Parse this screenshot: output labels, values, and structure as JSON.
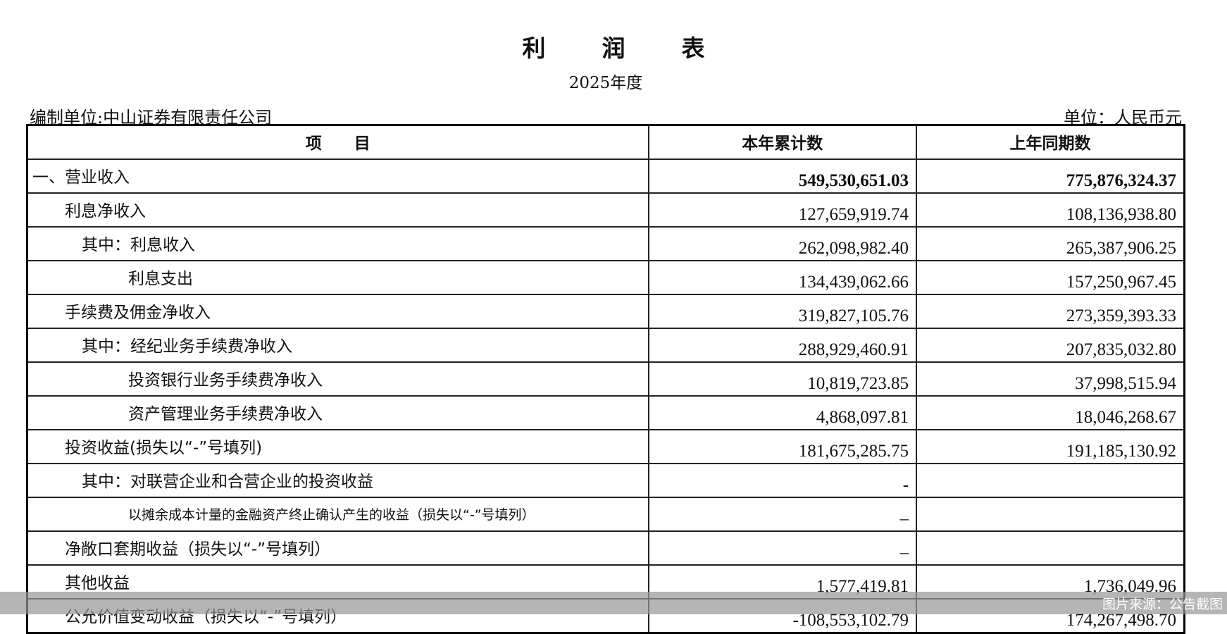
{
  "header": {
    "title": "利润表",
    "year": "2025年度",
    "company": "编制单位:中山证券有限责任公司",
    "unit": "单位：人民币元"
  },
  "columns": [
    "项　　目",
    "本年累计数",
    "上年同期数"
  ],
  "rows": [
    {
      "label": "一、营业收入",
      "indent": 0,
      "current": "549,530,651.03",
      "previous": "775,876,324.37",
      "bold": true
    },
    {
      "label": "利息净收入",
      "indent": 1,
      "current": "127,659,919.74",
      "previous": "108,136,938.80"
    },
    {
      "label": "其中：利息收入",
      "indent": 2,
      "current": "262,098,982.40",
      "previous": "265,387,906.25"
    },
    {
      "label": "利息支出",
      "indent": 3,
      "current": "134,439,062.66",
      "previous": "157,250,967.45"
    },
    {
      "label": "手续费及佣金净收入",
      "indent": 1,
      "current": "319,827,105.76",
      "previous": "273,359,393.33"
    },
    {
      "label": "其中：经纪业务手续费净收入",
      "indent": 2,
      "current": "288,929,460.91",
      "previous": "207,835,032.80"
    },
    {
      "label": "投资银行业务手续费净收入",
      "indent": 3,
      "current": "10,819,723.85",
      "previous": "37,998,515.94"
    },
    {
      "label": "资产管理业务手续费净收入",
      "indent": 3,
      "current": "4,868,097.81",
      "previous": "18,046,268.67"
    },
    {
      "label": "投资收益(损失以“-”号填列)",
      "indent": 1,
      "current": "181,675,285.75",
      "previous": "191,185,130.92"
    },
    {
      "label": "其中：对联营企业和合营企业的投资收益",
      "indent": 2,
      "current": "-",
      "previous": ""
    },
    {
      "label": "以摊余成本计量的金融资产终止确认产生的收益（损失以“-”号填列）",
      "indent": 3,
      "current": "–",
      "previous": "",
      "small": true
    },
    {
      "label": "净敞口套期收益（损失以“-”号填列）",
      "indent": 1,
      "current": "–",
      "previous": ""
    },
    {
      "label": "其他收益",
      "indent": 1,
      "current": "1,577,419.81",
      "previous": "1,736,049.96"
    },
    {
      "label": "公允价值变动收益（损失以“-”号填列）",
      "indent": 1,
      "current": "-108,553,102.79",
      "previous": "174,267,498.70"
    }
  ],
  "watermark": "图片来源：公告截图"
}
